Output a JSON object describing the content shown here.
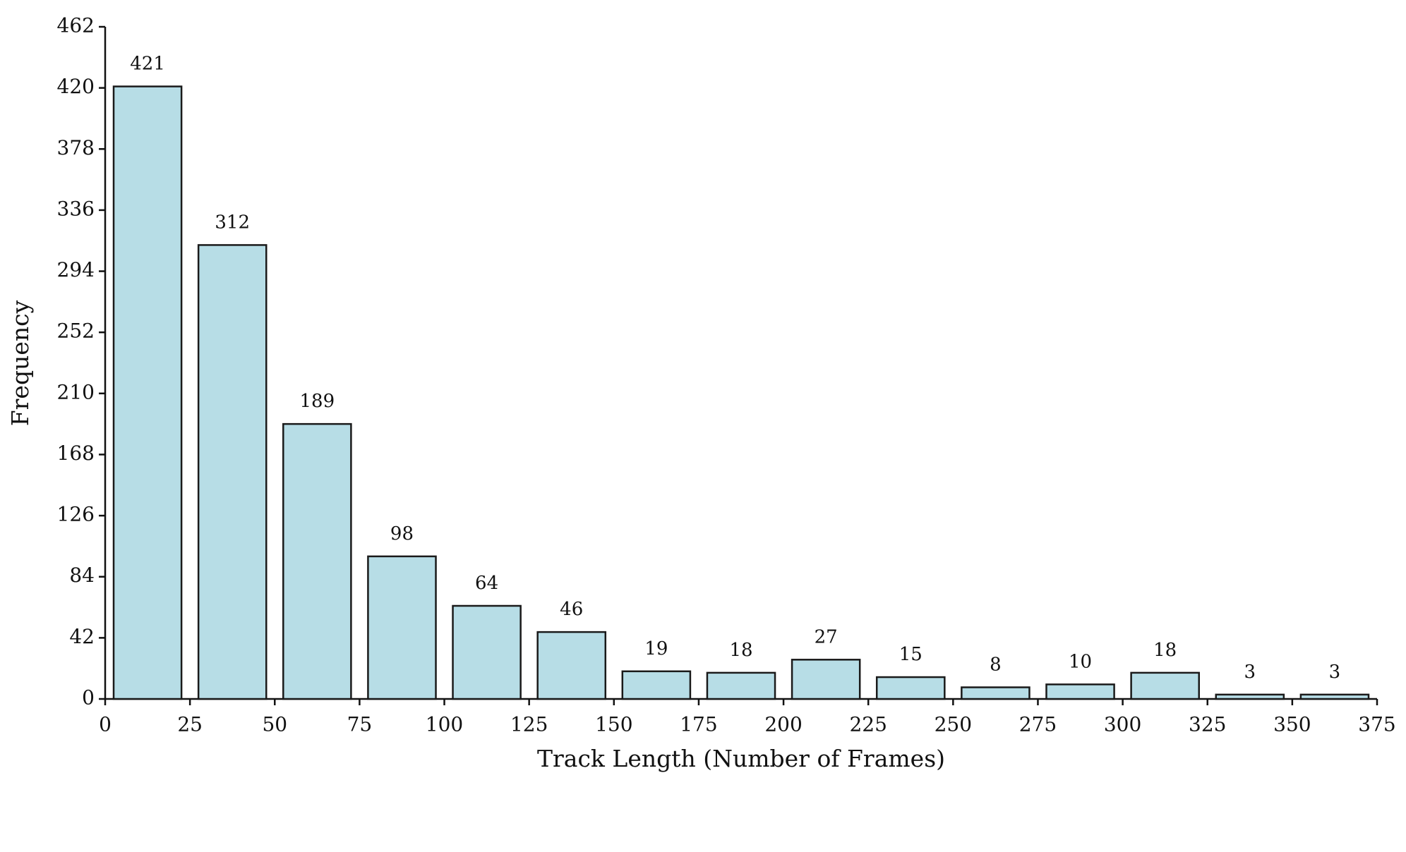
{
  "chart_data": {
    "type": "histogram",
    "x_label": "Track Length (Number of Frames)",
    "y_label": "Frequency",
    "bins": [
      0,
      25,
      50,
      75,
      100,
      125,
      150,
      175,
      200,
      225,
      250,
      275,
      300,
      325,
      350,
      375
    ],
    "values": [
      421,
      312,
      189,
      98,
      64,
      46,
      19,
      18,
      27,
      15,
      8,
      10,
      18,
      3,
      3
    ],
    "color": "#b7dde6",
    "edge_color": "#1a1a1a",
    "xlim": [
      0,
      375
    ],
    "xticks": [
      0,
      25,
      50,
      75,
      100,
      125,
      150,
      175,
      200,
      225,
      250,
      275,
      300,
      325,
      350,
      375
    ],
    "ylim": [
      0,
      462
    ],
    "yticks": [
      0,
      42,
      84,
      126,
      168,
      210,
      252,
      294,
      336,
      378,
      420,
      462
    ],
    "grid": false
  }
}
